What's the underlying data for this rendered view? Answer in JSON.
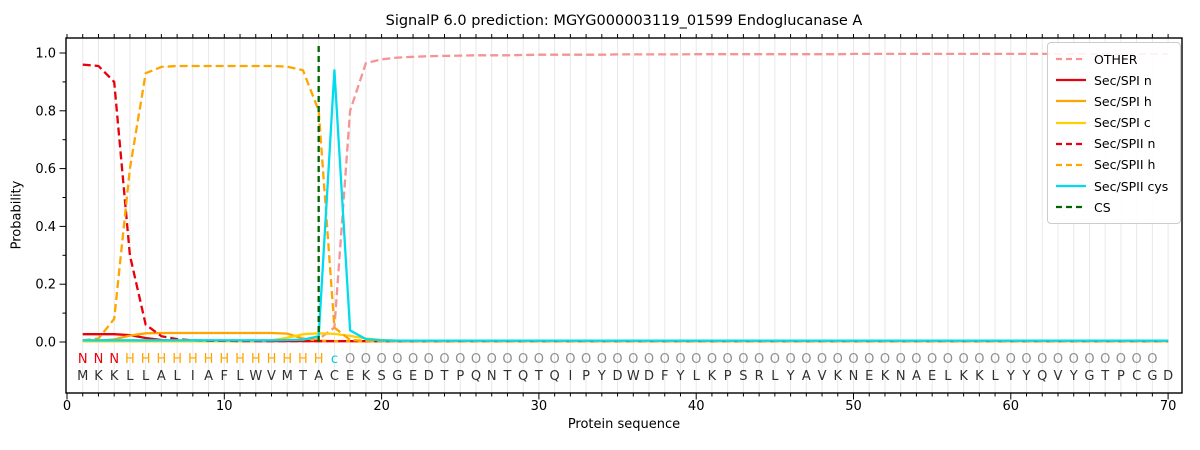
{
  "chart_data": {
    "type": "line",
    "title": "SignalP 6.0 prediction: MGYG000003119_01599 Endoglucanase A",
    "xlabel": "Protein sequence",
    "ylabel": "Probability",
    "xlim": [
      -0.1,
      70.9
    ],
    "ylim": [
      -0.18,
      1.05
    ],
    "xticks": [
      0,
      10,
      20,
      30,
      40,
      50,
      60,
      70
    ],
    "yticks": [
      0.0,
      0.2,
      0.4,
      0.6,
      0.8,
      1.0
    ],
    "ytick_labels": [
      "0.0",
      "0.2",
      "0.4",
      "0.6",
      "0.8",
      "1.0"
    ],
    "grid": "light vertical gridline at every residue position",
    "legend_position": "upper right",
    "sequence": "MKKLLALIAFLWVMTACEKSGEDTPQNTQTQIPYDWDFYLKPSRLYAVKNEKNAELKKLYYQVYGTPCGD",
    "region_labels": "NNNHHHHHHHHHHHHHcOOOOOOOOOOOOOOOOOOOOOOOOOOOOOOOOOOOOOOOOOOOOOOOOOOOO",
    "region_colors": {
      "N": "#e8000b",
      "H": "#ffa500",
      "c": "#00c8dc",
      "O": "#8f8f8f"
    },
    "sequence_color": "#303030",
    "cs_position": 16,
    "series": [
      {
        "name": "OTHER",
        "color": "#f49494",
        "dash": true,
        "values": [
          0.004,
          0.004,
          0.004,
          0.004,
          0.004,
          0.004,
          0.004,
          0.004,
          0.004,
          0.004,
          0.004,
          0.004,
          0.004,
          0.004,
          0.005,
          0.01,
          0.05,
          0.8,
          0.965,
          0.978,
          0.984,
          0.987,
          0.989,
          0.99,
          0.991,
          0.992,
          0.992,
          0.992,
          0.993,
          0.994,
          0.994,
          0.994,
          0.994,
          0.994,
          0.995,
          0.995,
          0.995,
          0.995,
          0.995,
          0.996,
          0.996,
          0.996,
          0.996,
          0.996,
          0.996,
          0.996,
          0.996,
          0.996,
          0.996,
          0.997,
          0.997,
          0.997,
          0.997,
          0.997,
          0.997,
          0.997,
          0.997,
          0.997,
          0.997,
          0.997,
          0.997,
          0.997,
          0.997,
          0.997,
          0.997,
          0.997,
          0.997,
          0.997,
          0.997,
          0.997
        ]
      },
      {
        "name": "Sec/SPI n",
        "color": "#e8000b",
        "dash": false,
        "values": [
          0.027,
          0.027,
          0.027,
          0.024,
          0.014,
          0.007,
          0.004,
          0.003,
          0.003,
          0.003,
          0.003,
          0.003,
          0.003,
          0.003,
          0.003,
          0.003,
          0.003,
          0.002,
          0.002,
          0.002,
          0.002,
          0.002,
          0.002,
          0.002,
          0.002,
          0.002,
          0.002,
          0.002,
          0.002,
          0.002,
          0.002,
          0.002,
          0.002,
          0.002,
          0.002,
          0.002,
          0.002,
          0.002,
          0.002,
          0.002,
          0.002,
          0.002,
          0.002,
          0.002,
          0.002,
          0.002,
          0.002,
          0.002,
          0.002,
          0.002,
          0.002,
          0.002,
          0.002,
          0.002,
          0.002,
          0.002,
          0.002,
          0.002,
          0.002,
          0.002,
          0.002,
          0.002,
          0.002,
          0.002,
          0.002,
          0.002,
          0.002,
          0.002,
          0.002,
          0.002
        ]
      },
      {
        "name": "Sec/SPI h",
        "color": "#ffa500",
        "dash": false,
        "values": [
          0.003,
          0.004,
          0.009,
          0.022,
          0.03,
          0.031,
          0.031,
          0.031,
          0.031,
          0.031,
          0.031,
          0.031,
          0.031,
          0.029,
          0.012,
          0.005,
          0.003,
          0.002,
          0.002,
          0.002,
          0.002,
          0.002,
          0.002,
          0.002,
          0.002,
          0.002,
          0.002,
          0.002,
          0.002,
          0.002,
          0.002,
          0.002,
          0.002,
          0.002,
          0.002,
          0.002,
          0.002,
          0.002,
          0.002,
          0.002,
          0.002,
          0.002,
          0.002,
          0.002,
          0.002,
          0.002,
          0.002,
          0.002,
          0.002,
          0.002,
          0.002,
          0.002,
          0.002,
          0.002,
          0.002,
          0.002,
          0.002,
          0.002,
          0.002,
          0.002,
          0.002,
          0.002,
          0.002,
          0.002,
          0.002,
          0.002,
          0.002,
          0.002,
          0.002,
          0.002
        ]
      },
      {
        "name": "Sec/SPI c",
        "color": "#ffd000",
        "dash": false,
        "values": [
          0.002,
          0.002,
          0.002,
          0.002,
          0.002,
          0.002,
          0.002,
          0.002,
          0.002,
          0.002,
          0.002,
          0.003,
          0.006,
          0.015,
          0.027,
          0.03,
          0.028,
          0.021,
          0.012,
          0.007,
          0.005,
          0.004,
          0.003,
          0.003,
          0.002,
          0.002,
          0.002,
          0.002,
          0.002,
          0.002,
          0.002,
          0.002,
          0.002,
          0.002,
          0.002,
          0.002,
          0.002,
          0.002,
          0.002,
          0.002,
          0.002,
          0.002,
          0.002,
          0.002,
          0.002,
          0.002,
          0.002,
          0.002,
          0.002,
          0.002,
          0.002,
          0.002,
          0.002,
          0.002,
          0.002,
          0.002,
          0.002,
          0.002,
          0.002,
          0.002,
          0.002,
          0.002,
          0.002,
          0.002,
          0.002,
          0.002,
          0.002,
          0.002,
          0.002,
          0.002
        ]
      },
      {
        "name": "Sec/SPII n",
        "color": "#e8000b",
        "dash": true,
        "values": [
          0.96,
          0.955,
          0.9,
          0.3,
          0.06,
          0.02,
          0.01,
          0.006,
          0.004,
          0.004,
          0.003,
          0.003,
          0.003,
          0.003,
          0.003,
          0.003,
          0.003,
          0.003,
          0.003,
          0.003,
          0.003,
          0.003,
          0.003,
          0.003,
          0.003,
          0.003,
          0.003,
          0.003,
          0.003,
          0.003,
          0.003,
          0.003,
          0.003,
          0.003,
          0.003,
          0.003,
          0.003,
          0.003,
          0.003,
          0.003,
          0.003,
          0.003,
          0.003,
          0.003,
          0.003,
          0.003,
          0.003,
          0.003,
          0.003,
          0.003,
          0.003,
          0.003,
          0.003,
          0.003,
          0.003,
          0.003,
          0.003,
          0.003,
          0.003,
          0.003,
          0.003,
          0.003,
          0.003,
          0.003,
          0.003,
          0.003,
          0.003,
          0.003,
          0.003,
          0.003
        ]
      },
      {
        "name": "Sec/SPII h",
        "color": "#ffa500",
        "dash": true,
        "values": [
          0.006,
          0.012,
          0.08,
          0.6,
          0.93,
          0.952,
          0.955,
          0.955,
          0.955,
          0.955,
          0.955,
          0.955,
          0.955,
          0.953,
          0.94,
          0.8,
          0.05,
          0.007,
          0.004,
          0.003,
          0.003,
          0.003,
          0.003,
          0.003,
          0.003,
          0.003,
          0.003,
          0.003,
          0.003,
          0.003,
          0.003,
          0.003,
          0.003,
          0.003,
          0.003,
          0.003,
          0.003,
          0.003,
          0.003,
          0.003,
          0.003,
          0.003,
          0.003,
          0.003,
          0.003,
          0.003,
          0.003,
          0.003,
          0.003,
          0.003,
          0.003,
          0.003,
          0.003,
          0.003,
          0.003,
          0.003,
          0.003,
          0.003,
          0.003,
          0.003,
          0.003,
          0.003,
          0.003,
          0.003,
          0.003,
          0.003,
          0.003,
          0.003,
          0.003,
          0.003
        ]
      },
      {
        "name": "Sec/SPII cys",
        "color": "#00dcee",
        "dash": false,
        "values": [
          0.006,
          0.006,
          0.006,
          0.006,
          0.006,
          0.006,
          0.006,
          0.006,
          0.006,
          0.006,
          0.006,
          0.006,
          0.006,
          0.007,
          0.008,
          0.02,
          0.94,
          0.04,
          0.01,
          0.006,
          0.005,
          0.005,
          0.005,
          0.005,
          0.005,
          0.005,
          0.005,
          0.005,
          0.005,
          0.005,
          0.005,
          0.005,
          0.005,
          0.005,
          0.005,
          0.005,
          0.005,
          0.005,
          0.005,
          0.005,
          0.005,
          0.005,
          0.005,
          0.005,
          0.005,
          0.005,
          0.005,
          0.005,
          0.005,
          0.005,
          0.005,
          0.005,
          0.005,
          0.005,
          0.005,
          0.005,
          0.005,
          0.005,
          0.005,
          0.005,
          0.005,
          0.005,
          0.005,
          0.005,
          0.005,
          0.005,
          0.005,
          0.005,
          0.005,
          0.005
        ]
      },
      {
        "name": "CS",
        "color": "#006400",
        "dash": true,
        "vline_x": 16,
        "y0": 0,
        "y1": 1.03
      }
    ]
  }
}
